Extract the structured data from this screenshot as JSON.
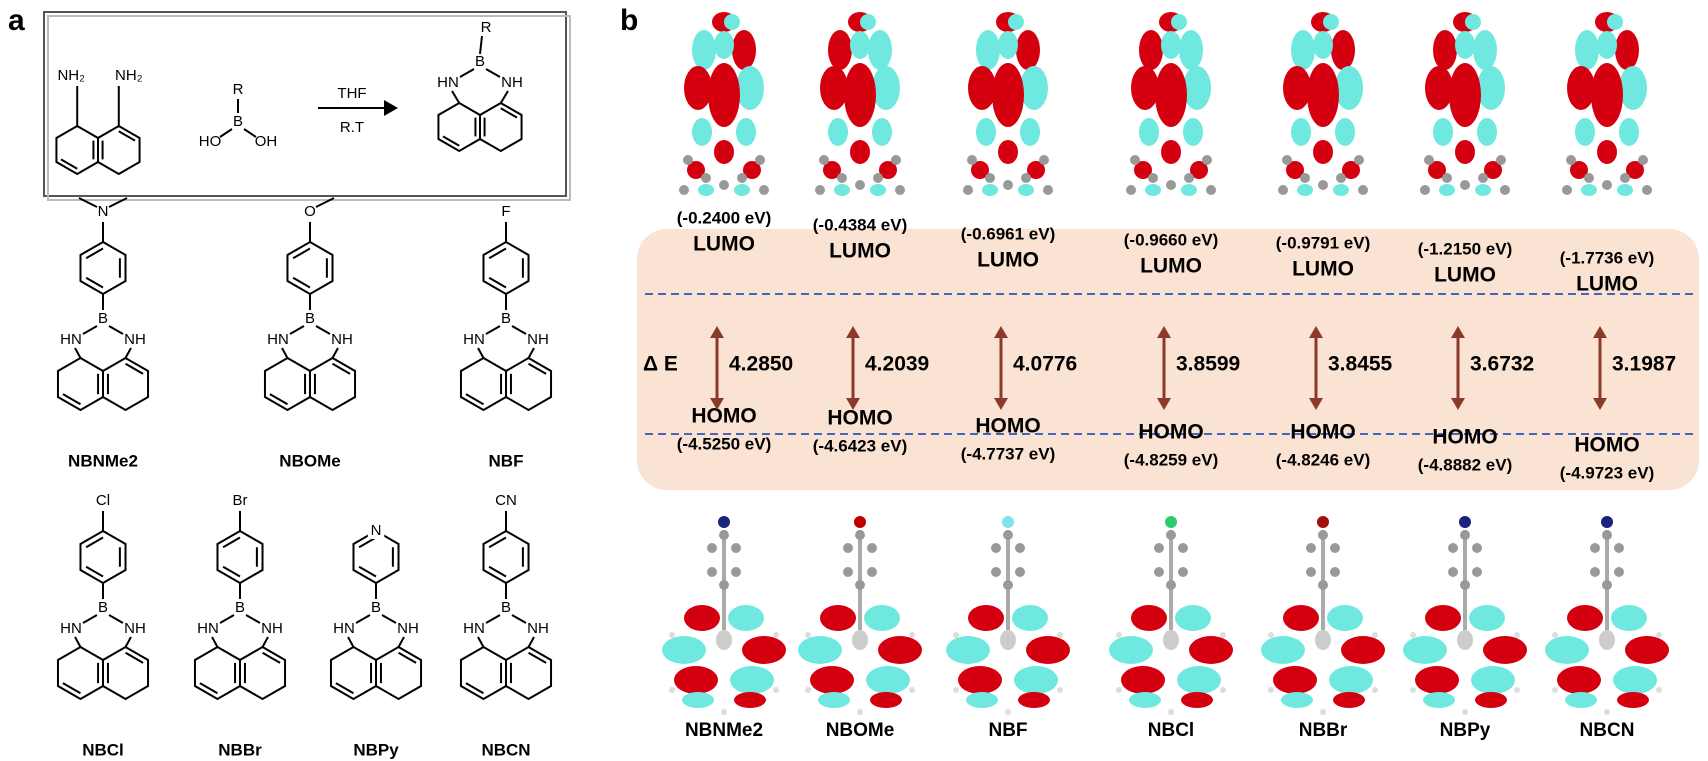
{
  "panel_a": {
    "label": "a",
    "scheme": {
      "amine_left": "NH₂",
      "amine_right": "NH₂",
      "r_group": "R",
      "boron": "B",
      "hydroxyl_left": "HO",
      "hydroxyl_right": "OH",
      "solvent": "THF",
      "condition": "R.T"
    },
    "core": {
      "left": "HN",
      "boron": "B",
      "right": "NH"
    },
    "compounds": [
      {
        "substituent": "N",
        "name": "NBNMe2"
      },
      {
        "substituent": "O",
        "name": "NBOMe"
      },
      {
        "substituent": "F",
        "name": "NBF"
      },
      {
        "substituent": "Cl",
        "name": "NBCl"
      },
      {
        "substituent": "Br",
        "name": "NBBr"
      },
      {
        "substituent": "N",
        "name": "NBPy"
      },
      {
        "substituent": "CN",
        "name": "NBCN"
      }
    ]
  },
  "panel_b": {
    "label": "b",
    "lumo_label": "LUMO",
    "homo_label": "HOMO",
    "gap_label": "Δ E",
    "columns": [
      {
        "name": "NBNMe2",
        "lumo": "(-0.2400 eV)",
        "homo": "(-4.5250 eV)",
        "gap": "4.2850"
      },
      {
        "name": "NBOMe",
        "lumo": "(-0.4384 eV)",
        "homo": "(-4.6423 eV)",
        "gap": "4.2039"
      },
      {
        "name": "NBF",
        "lumo": "(-0.6961 eV)",
        "homo": "(-4.7737 eV)",
        "gap": "4.0776"
      },
      {
        "name": "NBCl",
        "lumo": "(-0.9660 eV)",
        "homo": "(-4.8259 eV)",
        "gap": "3.8599"
      },
      {
        "name": "NBBr",
        "lumo": "(-0.9791 eV)",
        "homo": "(-4.8246 eV)",
        "gap": "3.8455"
      },
      {
        "name": "NBPy",
        "lumo": "(-1.2150 eV)",
        "homo": "(-4.8882 eV)",
        "gap": "3.6732"
      },
      {
        "name": "NBCN",
        "lumo": "(-1.7736 eV)",
        "homo": "(-4.9723 eV)",
        "gap": "3.1987"
      }
    ]
  }
}
